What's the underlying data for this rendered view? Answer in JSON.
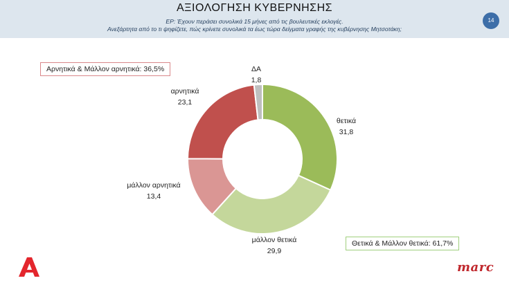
{
  "header": {
    "title": "ΑΞΙΟΛΟΓΗΣΗ ΚΥΒΕΡΝΗΣΗΣ",
    "question_line1": "ΕΡ: Έχουν περάσει συνολικά 15 μήνες από τις βουλευτικές εκλογές.",
    "question_line2": "Ανεξάρτητα από το τι ψηφίζετε, πώς κρίνετε συνολικά τα έως τώρα δείγματα γραφής της κυβέρνησης Μητσοτάκη;",
    "page_number": "14"
  },
  "summaries": {
    "negative": "Αρνητικά & Μάλλον αρνητικά: 36,5%",
    "positive": "Θετικά & Μάλλον θετικά: 61,7%"
  },
  "logos": {
    "left_mark": "Α",
    "right": "marc"
  },
  "chart_data": {
    "type": "pie",
    "donut": true,
    "title": "",
    "slices": [
      {
        "label": "θετικά",
        "value": 31.8,
        "display": "31,8",
        "color": "#9bbb59"
      },
      {
        "label": "μάλλον θετικά",
        "value": 29.9,
        "display": "29,9",
        "color": "#c4d79b"
      },
      {
        "label": "μάλλον αρνητικά",
        "value": 13.4,
        "display": "13,4",
        "color": "#da9694"
      },
      {
        "label": "αρνητικά",
        "value": 23.1,
        "display": "23,1",
        "color": "#c0504d"
      },
      {
        "label": "ΔΑ",
        "value": 1.8,
        "display": "1,8",
        "color": "#bfbfbf"
      }
    ]
  }
}
